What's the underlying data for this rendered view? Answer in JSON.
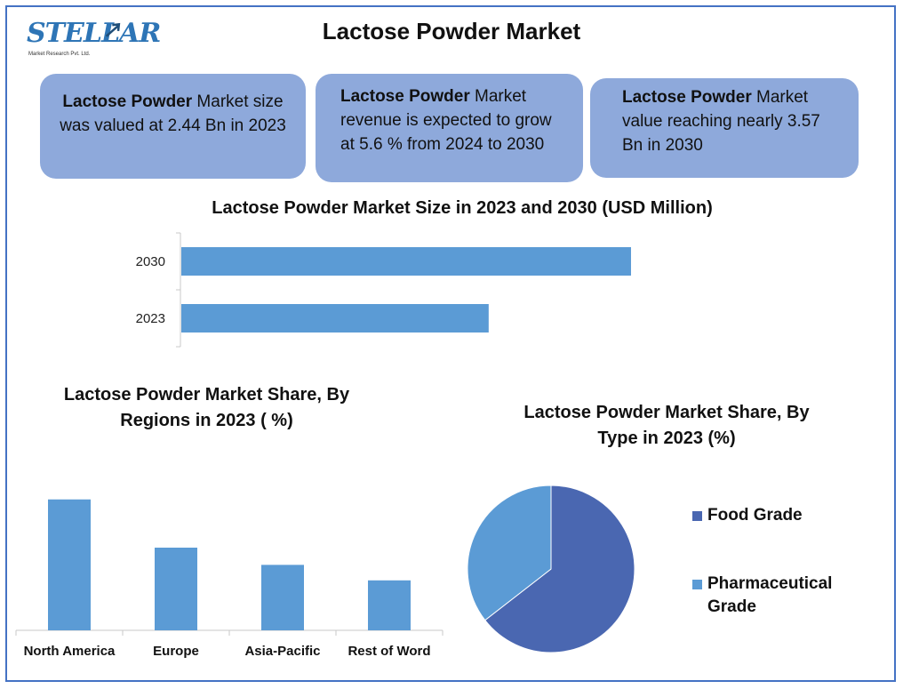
{
  "brand": {
    "logo_text": "STELLAR",
    "logo_sub": "Market Research Pvt. Ltd."
  },
  "title": "Lactose Powder Market",
  "cards": [
    {
      "bold": "Lactose Powder",
      "text": " Market size was valued at 2.44 Bn in 2023"
    },
    {
      "bold": "Lactose Powder",
      "text": " Market revenue is expected to grow at 5.6 % from 2024 to 2030"
    },
    {
      "bold": "Lactose Powder",
      "text": " Market value reaching nearly 3.57 Bn in 2030"
    }
  ],
  "colors": {
    "frame": "#4472c4",
    "card": "#8ea9db",
    "bar": "#5b9bd5",
    "food": "#4a67b1",
    "pharma": "#5b9bd5"
  },
  "chart_data": [
    {
      "type": "bar",
      "orientation": "horizontal",
      "title": "Lactose Powder Market Size in 2023 and 2030 (USD Million)",
      "categories": [
        "2030",
        "2023"
      ],
      "values": [
        3570,
        2440
      ],
      "xlim": [
        0,
        5200
      ],
      "grid": false
    },
    {
      "type": "bar",
      "orientation": "vertical",
      "title": "Lactose Powder Market Share, By Regions in 2023 ( %)",
      "categories": [
        "North America",
        "Europe",
        "Asia-Pacific",
        "Rest of Word"
      ],
      "values": [
        38,
        24,
        19,
        14.5
      ],
      "ylim": [
        0,
        40
      ],
      "grid": false
    },
    {
      "type": "pie",
      "title": "Lactose Powder Market Share, By Type in 2023 (%)",
      "labels": [
        "Food Grade",
        "Pharmaceutical Grade"
      ],
      "values": [
        64.5,
        35.5
      ],
      "legend": "right"
    }
  ]
}
